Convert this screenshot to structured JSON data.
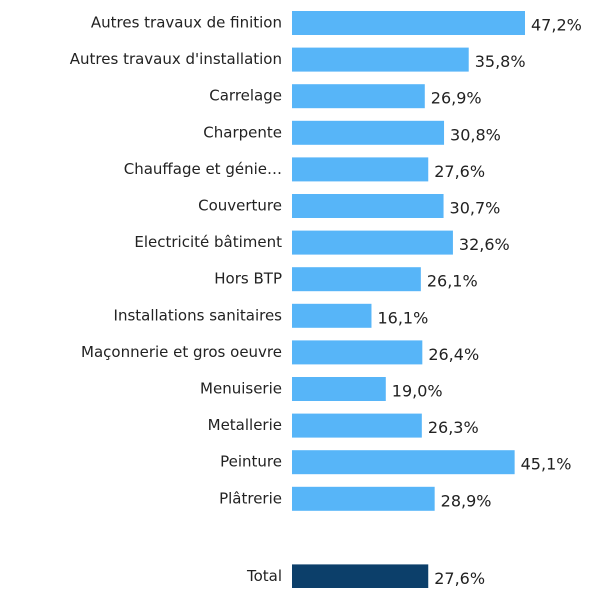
{
  "chart_data": {
    "type": "bar",
    "orientation": "horizontal",
    "categories": [
      "Autres travaux de finition",
      "Autres travaux d'installation",
      "Carrelage",
      "Charpente",
      "Chauffage et génie…",
      "Couverture",
      "Electricité bâtiment",
      "Hors BTP",
      "Installations sanitaires",
      "Maçonnerie et gros oeuvre",
      "Menuiserie",
      "Metallerie",
      "Peinture",
      "Plâtrerie",
      "Total"
    ],
    "values": [
      47.2,
      35.8,
      26.9,
      30.8,
      27.6,
      30.7,
      32.6,
      26.1,
      16.1,
      26.4,
      19.0,
      26.3,
      45.1,
      28.9,
      27.6
    ],
    "value_labels": [
      "47,2%",
      "35,8%",
      "26,9%",
      "30,8%",
      "27,6%",
      "30,7%",
      "32,6%",
      "26,1%",
      "16,1%",
      "26,4%",
      "19,0%",
      "26,3%",
      "45,1%",
      "28,9%",
      "27,6%"
    ],
    "colors": [
      "#57b5f8",
      "#57b5f8",
      "#57b5f8",
      "#57b5f8",
      "#57b5f8",
      "#57b5f8",
      "#57b5f8",
      "#57b5f8",
      "#57b5f8",
      "#57b5f8",
      "#57b5f8",
      "#57b5f8",
      "#57b5f8",
      "#57b5f8",
      "#0c3f6a"
    ]
  }
}
